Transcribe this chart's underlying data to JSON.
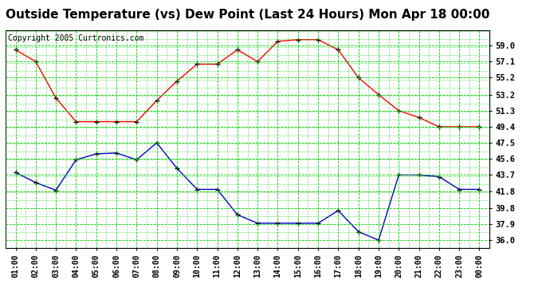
{
  "title": "Outside Temperature (vs) Dew Point (Last 24 Hours) Mon Apr 18 00:00",
  "copyright": "Copyright 2005 Curtronics.com",
  "x_labels": [
    "01:00",
    "02:00",
    "03:00",
    "04:00",
    "05:00",
    "06:00",
    "07:00",
    "08:00",
    "09:00",
    "10:00",
    "11:00",
    "12:00",
    "13:00",
    "14:00",
    "15:00",
    "16:00",
    "17:00",
    "18:00",
    "19:00",
    "20:00",
    "21:00",
    "22:00",
    "23:00",
    "00:00"
  ],
  "temp_data": [
    58.5,
    57.1,
    52.8,
    50.0,
    50.0,
    50.0,
    50.0,
    52.5,
    54.8,
    56.8,
    56.8,
    58.5,
    57.1,
    59.5,
    59.7,
    59.7,
    58.5,
    55.2,
    53.2,
    51.3,
    50.5,
    49.4,
    49.4,
    49.4
  ],
  "dew_data": [
    44.0,
    42.8,
    41.9,
    45.5,
    46.2,
    46.3,
    45.5,
    47.5,
    44.5,
    42.0,
    42.0,
    39.0,
    38.0,
    38.0,
    38.0,
    38.0,
    39.5,
    37.0,
    36.0,
    43.7,
    43.7,
    43.5,
    42.0,
    42.0
  ],
  "temp_color": "#FF0000",
  "dew_color": "#0000CC",
  "bg_color": "#FFFFFF",
  "plot_bg": "#FFFFFF",
  "grid_color": "#00CC00",
  "ylim_min": 35.05,
  "ylim_max": 60.85,
  "yticks": [
    36.0,
    37.9,
    39.8,
    41.8,
    43.7,
    45.6,
    47.5,
    49.4,
    51.3,
    53.2,
    55.2,
    57.1,
    59.0
  ],
  "title_fontsize": 11,
  "copyright_fontsize": 7
}
